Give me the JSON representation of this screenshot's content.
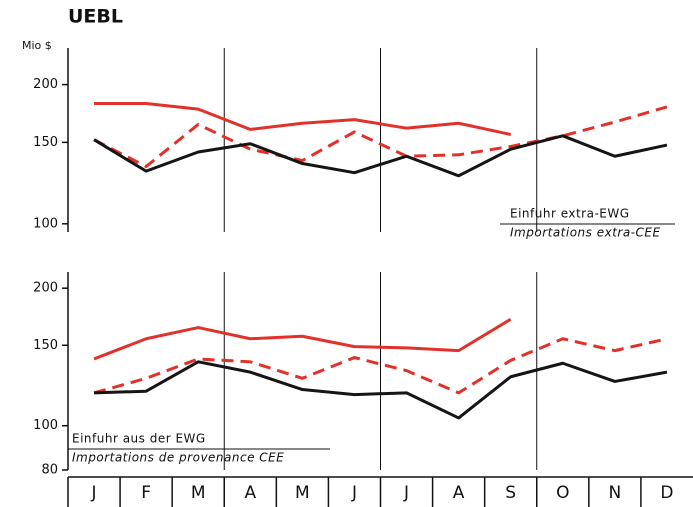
{
  "chart_data": [
    {
      "type": "line",
      "title": "UEBL",
      "y_label": "Mio $",
      "yscale": "log",
      "ylim": [
        96,
        240
      ],
      "yticks": [
        100,
        150,
        200
      ],
      "annotation": [
        "Einfuhr extra-EWG",
        "Importations extra-CEE"
      ],
      "series": [
        {
          "color": "#e2312b",
          "style": "solid",
          "values": [
            182,
            182,
            177,
            160,
            165,
            168,
            161,
            165,
            156,
            null,
            null,
            null
          ]
        },
        {
          "color": "#e2312b",
          "style": "dashed",
          "values": [
            152,
            133,
            164,
            145,
            137,
            158,
            140,
            141,
            147,
            155,
            166,
            179
          ]
        },
        {
          "color": "#151515",
          "style": "solid",
          "values": [
            152,
            130,
            143,
            149,
            135,
            129,
            140,
            127,
            145,
            155,
            140,
            148
          ]
        }
      ]
    },
    {
      "type": "line",
      "yscale": "log",
      "ylim": [
        80,
        217
      ],
      "yticks": [
        80,
        100,
        150,
        200
      ],
      "categories": [
        "J",
        "F",
        "M",
        "A",
        "M",
        "J",
        "J",
        "A",
        "S",
        "O",
        "N",
        "D"
      ],
      "annotation": [
        "Einfuhr aus der EWG",
        "Importations de provenance CEE"
      ],
      "series": [
        {
          "color": "#e2312b",
          "style": "solid",
          "values": [
            140,
            155,
            164,
            155,
            157,
            149,
            148,
            146,
            171,
            null,
            null,
            null
          ]
        },
        {
          "color": "#e2312b",
          "style": "dashed",
          "values": [
            118,
            127,
            140,
            138,
            127,
            141,
            132,
            118,
            139,
            155,
            146,
            155
          ]
        },
        {
          "color": "#151515",
          "style": "solid",
          "values": [
            118,
            119,
            138,
            131,
            120,
            117,
            118,
            104,
            128,
            137,
            125,
            131
          ]
        }
      ]
    }
  ]
}
